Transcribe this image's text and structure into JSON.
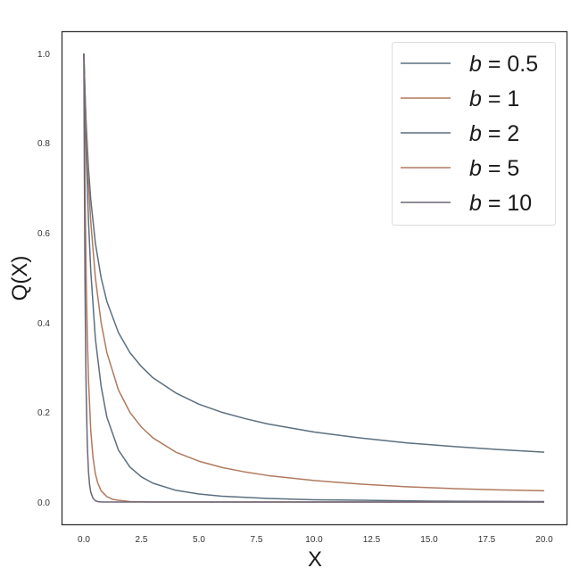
{
  "chart_data": {
    "type": "line",
    "title": "",
    "xlabel": "X",
    "ylabel": "Q(X)",
    "xlim": [
      -0.75,
      21.0
    ],
    "ylim": [
      -0.05,
      1.05
    ],
    "grid": false,
    "legend_position": "upper right",
    "x_ticks": [
      "0.0",
      "2.5",
      "5.0",
      "7.5",
      "10.0",
      "12.5",
      "15.0",
      "17.5",
      "20.0"
    ],
    "x_tick_values": [
      0,
      2.5,
      5,
      7.5,
      10,
      12.5,
      15,
      17.5,
      20
    ],
    "y_ticks": [
      "0.0",
      "0.2",
      "0.4",
      "0.6",
      "0.8",
      "1.0"
    ],
    "y_tick_values": [
      0,
      0.2,
      0.4,
      0.6,
      0.8,
      1.0
    ],
    "series": [
      {
        "name": "b = 0.5",
        "b_value": "0.5",
        "color": "#5b6f7f",
        "x": [
          0,
          0.05,
          0.1,
          0.2,
          0.3,
          0.5,
          0.75,
          1,
          1.5,
          2,
          2.5,
          3,
          4,
          5,
          6,
          7,
          8,
          10,
          12,
          14,
          16,
          18,
          20
        ],
        "values": [
          1.0,
          0.913,
          0.845,
          0.745,
          0.674,
          0.577,
          0.5,
          0.447,
          0.378,
          0.333,
          0.302,
          0.277,
          0.243,
          0.218,
          0.2,
          0.186,
          0.174,
          0.156,
          0.143,
          0.132,
          0.124,
          0.117,
          0.111
        ]
      },
      {
        "name": "b = 1",
        "b_value": "1",
        "color": "#b07a5e",
        "x": [
          0,
          0.05,
          0.1,
          0.2,
          0.3,
          0.5,
          0.75,
          1,
          1.5,
          2,
          2.5,
          3,
          4,
          5,
          6,
          7,
          8,
          10,
          12,
          14,
          16,
          18,
          20
        ],
        "values": [
          1.0,
          0.909,
          0.833,
          0.714,
          0.625,
          0.5,
          0.4,
          0.333,
          0.25,
          0.2,
          0.167,
          0.143,
          0.111,
          0.091,
          0.077,
          0.067,
          0.059,
          0.048,
          0.04,
          0.034,
          0.03,
          0.027,
          0.025
        ]
      },
      {
        "name": "b = 2",
        "b_value": "2",
        "color": "#5b6f7f",
        "x": [
          0,
          0.05,
          0.1,
          0.2,
          0.3,
          0.5,
          0.75,
          1,
          1.5,
          2,
          2.5,
          3,
          4,
          5,
          6,
          8,
          10,
          12,
          15,
          20
        ],
        "values": [
          1.0,
          0.882,
          0.783,
          0.628,
          0.515,
          0.364,
          0.258,
          0.189,
          0.116,
          0.078,
          0.056,
          0.042,
          0.026,
          0.018,
          0.013,
          0.008,
          0.005,
          0.004,
          0.002,
          0.001
        ]
      },
      {
        "name": "b = 5",
        "b_value": "5",
        "color": "#b07a5e",
        "x": [
          0,
          0.02,
          0.05,
          0.1,
          0.15,
          0.2,
          0.3,
          0.4,
          0.5,
          0.6,
          0.75,
          1,
          1.25,
          1.5,
          2,
          3,
          5,
          10,
          20
        ],
        "values": [
          1.0,
          0.864,
          0.7,
          0.503,
          0.369,
          0.275,
          0.159,
          0.098,
          0.063,
          0.043,
          0.025,
          0.012,
          0.006,
          0.004,
          0.001,
          0.0,
          0.0,
          0.0,
          0.0
        ]
      },
      {
        "name": "b = 10",
        "b_value": "10",
        "color": "#6d6577",
        "x": [
          0,
          0.01,
          0.02,
          0.05,
          0.08,
          0.1,
          0.15,
          0.2,
          0.25,
          0.3,
          0.4,
          0.5,
          0.6,
          0.8,
          1,
          2,
          5,
          10,
          20
        ],
        "values": [
          1.0,
          0.862,
          0.744,
          0.486,
          0.323,
          0.247,
          0.127,
          0.068,
          0.038,
          0.022,
          0.008,
          0.003,
          0.001,
          0.0,
          0.0,
          0.0,
          0.0,
          0.0,
          0.0
        ]
      }
    ]
  },
  "legend": {
    "entries": [
      {
        "var": "b",
        "eq": " = 0.5"
      },
      {
        "var": "b",
        "eq": " = 1"
      },
      {
        "var": "b",
        "eq": " = 2"
      },
      {
        "var": "b",
        "eq": " = 5"
      },
      {
        "var": "b",
        "eq": " = 10"
      }
    ]
  }
}
